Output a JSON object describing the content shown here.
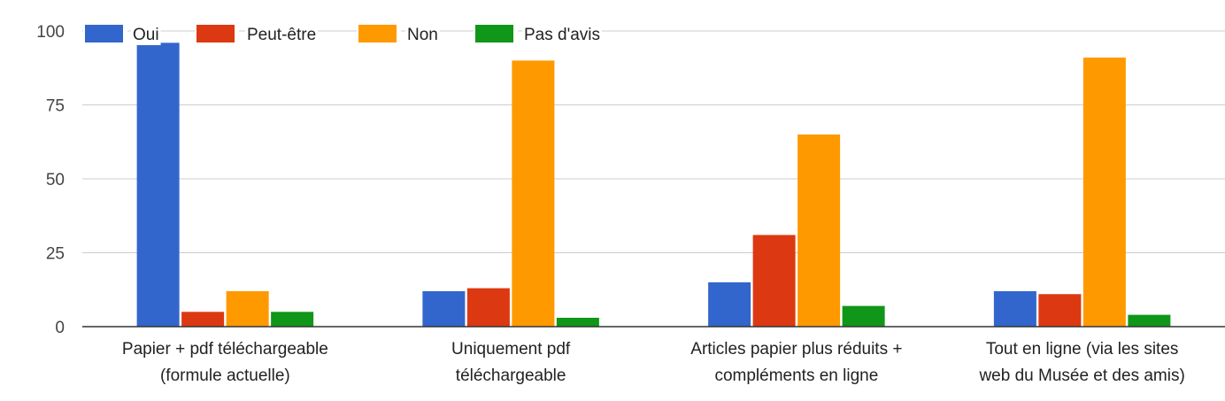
{
  "chart_data": {
    "type": "bar",
    "categories": [
      [
        "Papier + pdf téléchargeable",
        "(formule actuelle)"
      ],
      [
        "Uniquement pdf",
        "téléchargeable"
      ],
      [
        "Articles papier plus réduits +",
        "compléments en ligne"
      ],
      [
        "Tout en ligne (via les sites",
        "web du Musée et des amis)"
      ]
    ],
    "series": [
      {
        "name": "Oui",
        "color": "#3366cc",
        "values": [
          96,
          12,
          15,
          12
        ]
      },
      {
        "name": "Peut-être",
        "color": "#dc3912",
        "values": [
          5,
          13,
          31,
          11
        ]
      },
      {
        "name": "Non",
        "color": "#ff9900",
        "values": [
          12,
          90,
          65,
          91
        ]
      },
      {
        "name": "Pas d'avis",
        "color": "#109618",
        "values": [
          5,
          3,
          7,
          4
        ]
      }
    ],
    "ylim": [
      0,
      100
    ],
    "yticks": [
      "0",
      "25",
      "50",
      "75",
      "100"
    ],
    "grid": true,
    "legend_position": "top-left"
  }
}
